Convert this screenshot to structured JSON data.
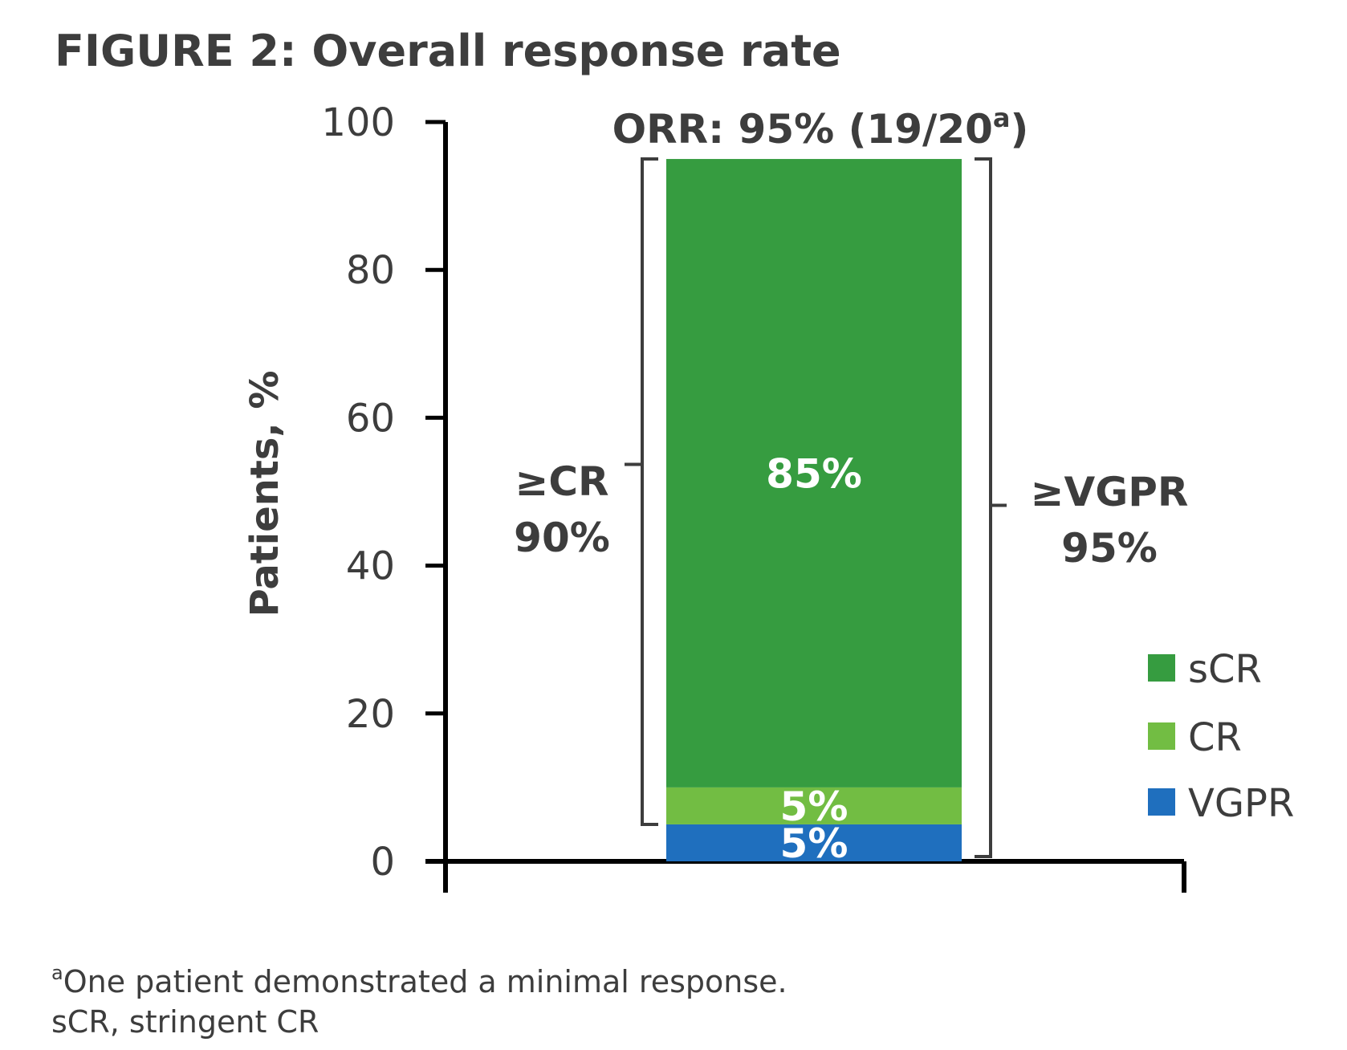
{
  "chart_data": {
    "type": "bar",
    "stacked": true,
    "title": "FIGURE 2: Overall response rate",
    "ylabel": "Patients, %",
    "ylim": [
      0,
      100
    ],
    "yticks": [
      "0",
      "20",
      "40",
      "60",
      "80",
      "100"
    ],
    "categories": [
      ""
    ],
    "series": [
      {
        "name": "VGPR",
        "values": [
          5
        ],
        "label": "5%",
        "color": "#1f6fbe"
      },
      {
        "name": "CR",
        "values": [
          5
        ],
        "label": "5%",
        "color": "#72bd43"
      },
      {
        "name": "sCR",
        "values": [
          85
        ],
        "label": "85%",
        "color": "#369c40"
      }
    ],
    "legend": {
      "position": "right",
      "entries": [
        {
          "name": "sCR",
          "color": "#369c40"
        },
        {
          "name": "CR",
          "color": "#72bd43"
        },
        {
          "name": "VGPR",
          "color": "#1f6fbe"
        }
      ]
    },
    "annotations": {
      "orr": {
        "text": "ORR: 95% (19/20",
        "sup": "a",
        "close": ")"
      },
      "left_bracket": {
        "line1": "≥CR",
        "line2": "90%",
        "from": 5,
        "to": 95
      },
      "right_bracket": {
        "line1": "≥VGPR",
        "line2": "95%",
        "from": 0,
        "to": 95
      }
    },
    "footnotes": {
      "line1_sup": "a",
      "line1": "One patient demonstrated a minimal response.",
      "line2": "sCR, stringent CR"
    }
  }
}
